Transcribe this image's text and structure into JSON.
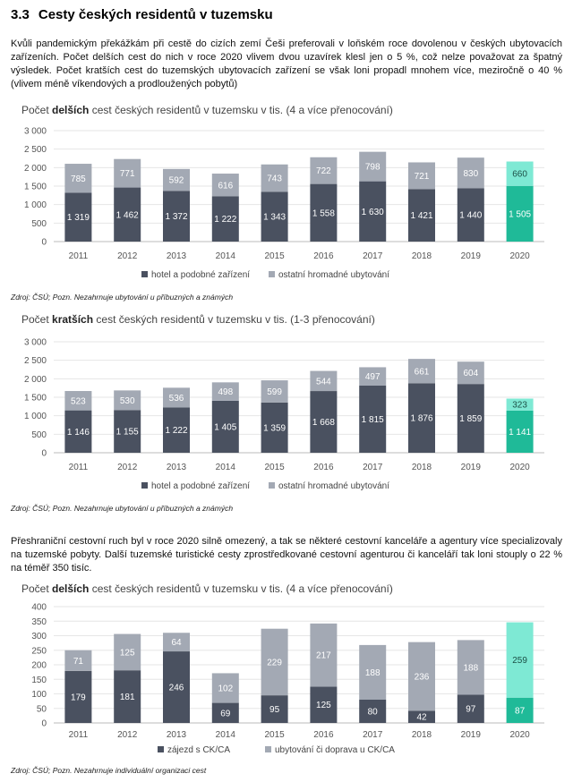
{
  "heading": {
    "number": "3.3",
    "title": "Cesty českých residentů v tuzemsku"
  },
  "paragraph1": "Kvůli pandemickým překážkám při cestě do cizích zemí Češi preferovali v loňském roce dovolenou v českých ubytovacích zařízeních. Počet delších cest do nich v roce 2020 vlivem dvou uzavírek klesl jen o 5 %, což nelze považovat za špatný výsledek. Počet kratších cest do tuzemských ubytovacích zařízení se však loni propadl mnohem více, meziročně o 40 % (vlivem méně víkendových a prodloužených pobytů)",
  "paragraph2": "Přeshraniční cestovní ruch byl v roce 2020 silně omezený, a tak se některé cestovní kanceláře a agentury více specializovaly na tuzemské pobyty. Další tuzemské turistické cesty zprostředkované cestovní agenturou či kanceláří tak loni stouply o 22 % na téměř 350 tisíc.",
  "colors": {
    "dark": "#4a5160",
    "light": "#a3a9b4",
    "accent_dark": "#1fba98",
    "accent_light": "#7ee9d4"
  },
  "chart_data": [
    {
      "type": "bar",
      "title_pre": "Počet ",
      "title_bold": "delších",
      "title_post": " cest českých residentů v tuzemsku v tis. (4 a více přenocování)",
      "categories": [
        "2011",
        "2012",
        "2013",
        "2014",
        "2015",
        "2016",
        "2017",
        "2018",
        "2019",
        "2020"
      ],
      "series": [
        {
          "name": "hotel a podobné zařízení",
          "values": [
            1319,
            1462,
            1372,
            1222,
            1343,
            1558,
            1630,
            1421,
            1440,
            1505
          ]
        },
        {
          "name": "ostatní hromadné ubytování",
          "values": [
            785,
            771,
            592,
            616,
            743,
            722,
            798,
            721,
            830,
            660
          ]
        }
      ],
      "value_labels": [
        [
          "1 319",
          "1 462",
          "1 372",
          "1 222",
          "1 343",
          "1 558",
          "1 630",
          "1 421",
          "1 440",
          "1 505"
        ],
        [
          "785",
          "771",
          "592",
          "616",
          "743",
          "722",
          "798",
          "721",
          "830",
          "660"
        ]
      ],
      "yticks": [
        0,
        500,
        1000,
        1500,
        2000,
        2500,
        3000
      ],
      "ytick_labels": [
        "0",
        "500",
        "1 000",
        "1 500",
        "2 000",
        "2 500",
        "3 000"
      ],
      "ylim": [
        0,
        3000
      ],
      "legend": "bottom",
      "source": "Zdroj: ČSÚ; Pozn. Nezahrnuje ubytování u příbuzných a známých"
    },
    {
      "type": "bar",
      "title_pre": "Počet ",
      "title_bold": "kratších",
      "title_post": " cest českých residentů v tuzemsku v tis. (1-3 přenocování)",
      "categories": [
        "2011",
        "2012",
        "2013",
        "2014",
        "2015",
        "2016",
        "2017",
        "2018",
        "2019",
        "2020"
      ],
      "series": [
        {
          "name": "hotel a podobné zařízení",
          "values": [
            1146,
            1155,
            1222,
            1405,
            1359,
            1668,
            1815,
            1876,
            1859,
            1141
          ]
        },
        {
          "name": "ostatní hromadné ubytování",
          "values": [
            523,
            530,
            536,
            498,
            599,
            544,
            497,
            661,
            604,
            323
          ]
        }
      ],
      "value_labels": [
        [
          "1 146",
          "1 155",
          "1 222",
          "1 405",
          "1 359",
          "1 668",
          "1 815",
          "1 876",
          "1 859",
          "1 141"
        ],
        [
          "523",
          "530",
          "536",
          "498",
          "599",
          "544",
          "497",
          "661",
          "604",
          "323"
        ]
      ],
      "yticks": [
        0,
        500,
        1000,
        1500,
        2000,
        2500,
        3000
      ],
      "ytick_labels": [
        "0",
        "500",
        "1 000",
        "1 500",
        "2 000",
        "2 500",
        "3 000"
      ],
      "ylim": [
        0,
        3000
      ],
      "legend": "bottom",
      "source": "Zdroj: ČSÚ; Pozn. Nezahrnuje ubytování u příbuzných a známých"
    },
    {
      "type": "bar",
      "title_pre": "Počet ",
      "title_bold": "delších",
      "title_post": " cest českých residentů v tuzemsku v tis. (4 a více přenocování)",
      "categories": [
        "2011",
        "2012",
        "2013",
        "2014",
        "2015",
        "2016",
        "2017",
        "2018",
        "2019",
        "2020"
      ],
      "series": [
        {
          "name": "zájezd s CK/CA",
          "values": [
            179,
            181,
            246,
            69,
            95,
            125,
            80,
            42,
            97,
            87
          ]
        },
        {
          "name": "ubytování či doprava u CK/CA",
          "values": [
            71,
            125,
            64,
            102,
            229,
            217,
            188,
            236,
            188,
            259
          ]
        }
      ],
      "value_labels": [
        [
          "179",
          "181",
          "246",
          "69",
          "95",
          "125",
          "80",
          "42",
          "97",
          "87"
        ],
        [
          "71",
          "125",
          "64",
          "102",
          "229",
          "217",
          "188",
          "236",
          "188",
          "259"
        ]
      ],
      "yticks": [
        0,
        50,
        100,
        150,
        200,
        250,
        300,
        350,
        400
      ],
      "ytick_labels": [
        "0",
        "50",
        "100",
        "150",
        "200",
        "250",
        "300",
        "350",
        "400"
      ],
      "ylim": [
        0,
        400
      ],
      "legend": "bottom",
      "source": "Zdroj: ČSÚ; Pozn. Nezahrnuje individuální organizaci cest"
    }
  ]
}
